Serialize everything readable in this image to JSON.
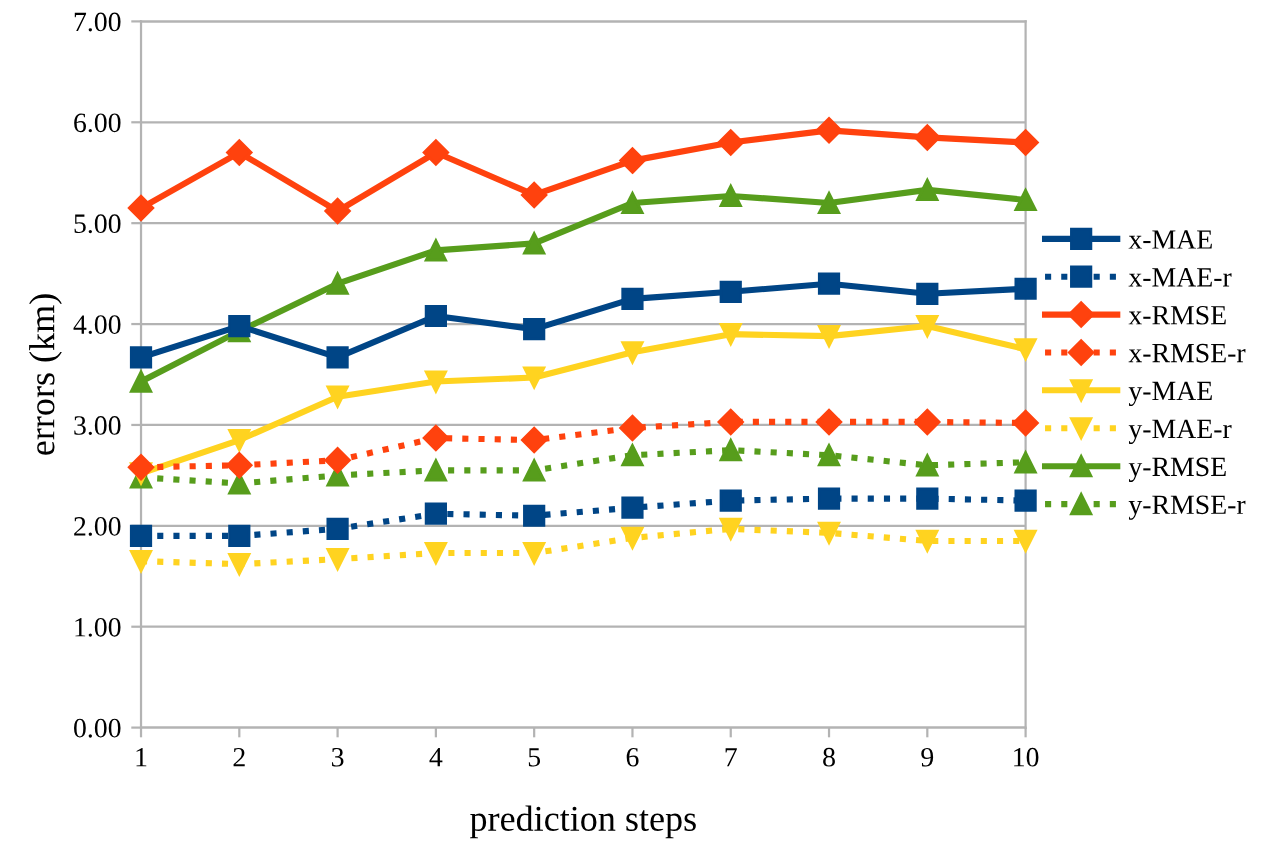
{
  "chart_data": {
    "type": "line",
    "xlabel": "prediction steps",
    "ylabel": "errors (km)",
    "categories": [
      "1",
      "2",
      "3",
      "4",
      "5",
      "6",
      "7",
      "8",
      "9",
      "10"
    ],
    "ylim": [
      0,
      7
    ],
    "yticks": [
      {
        "value": 0,
        "label": "0.00"
      },
      {
        "value": 1,
        "label": "1.00"
      },
      {
        "value": 2,
        "label": "2.00"
      },
      {
        "value": 3,
        "label": "3.00"
      },
      {
        "value": 4,
        "label": "4.00"
      },
      {
        "value": 5,
        "label": "5.00"
      },
      {
        "value": 6,
        "label": "6.00"
      },
      {
        "value": 7,
        "label": "7.00"
      }
    ],
    "grid": "y",
    "legend": "right",
    "series": [
      {
        "name": "x-MAE",
        "color": "#004586",
        "marker": "square",
        "line_style": "solid",
        "values": [
          3.67,
          3.98,
          3.67,
          4.08,
          3.95,
          4.25,
          4.32,
          4.4,
          4.3,
          4.35
        ]
      },
      {
        "name": "x-MAE-r",
        "color": "#004586",
        "marker": "square",
        "line_style": "dotted",
        "values": [
          1.9,
          1.9,
          1.97,
          2.12,
          2.1,
          2.18,
          2.25,
          2.27,
          2.27,
          2.25
        ]
      },
      {
        "name": "x-RMSE",
        "color": "#ff420e",
        "marker": "diamond",
        "line_style": "solid",
        "values": [
          5.15,
          5.7,
          5.12,
          5.7,
          5.28,
          5.62,
          5.8,
          5.92,
          5.85,
          5.8
        ]
      },
      {
        "name": "x-RMSE-r",
        "color": "#ff420e",
        "marker": "diamond",
        "line_style": "dotted",
        "values": [
          2.58,
          2.6,
          2.65,
          2.87,
          2.85,
          2.97,
          3.03,
          3.03,
          3.03,
          3.02
        ]
      },
      {
        "name": "y-MAE",
        "color": "#ffd320",
        "marker": "triangle_down",
        "line_style": "solid",
        "values": [
          2.52,
          2.85,
          3.28,
          3.43,
          3.47,
          3.72,
          3.9,
          3.88,
          3.98,
          3.75
        ]
      },
      {
        "name": "y-MAE-r",
        "color": "#ffd320",
        "marker": "triangle_down",
        "line_style": "dotted",
        "values": [
          1.65,
          1.62,
          1.67,
          1.73,
          1.73,
          1.88,
          1.97,
          1.93,
          1.85,
          1.85
        ]
      },
      {
        "name": "y-RMSE",
        "color": "#579d1c",
        "marker": "triangle",
        "line_style": "solid",
        "values": [
          3.43,
          3.93,
          4.4,
          4.73,
          4.8,
          5.2,
          5.27,
          5.2,
          5.33,
          5.23
        ]
      },
      {
        "name": "y-RMSE-r",
        "color": "#579d1c",
        "marker": "triangle",
        "line_style": "dotted",
        "values": [
          2.48,
          2.42,
          2.5,
          2.55,
          2.55,
          2.7,
          2.75,
          2.7,
          2.6,
          2.63
        ]
      }
    ]
  }
}
